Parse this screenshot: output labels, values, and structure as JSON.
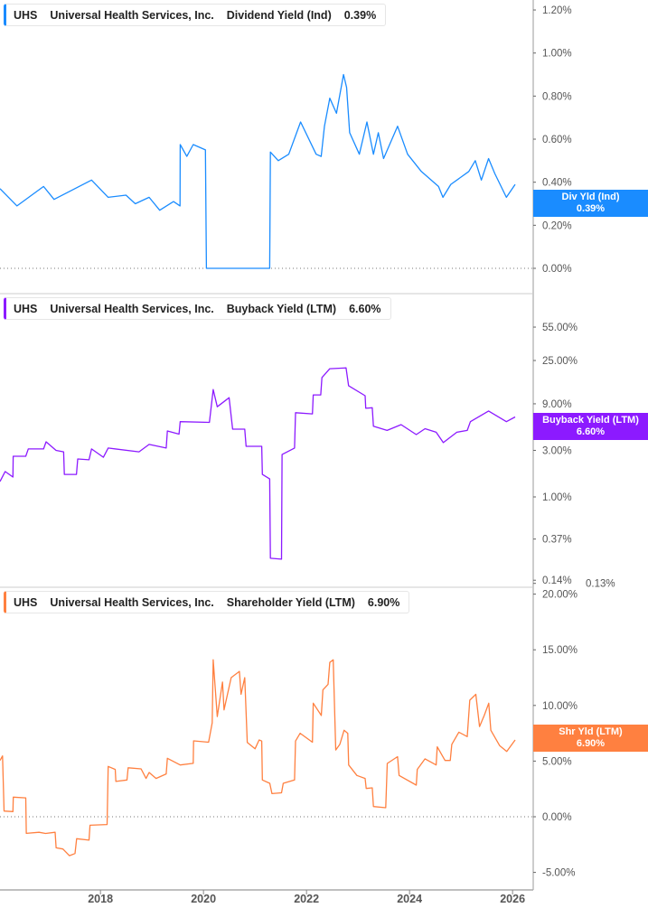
{
  "ticker": "UHS",
  "company": "Universal Health Services, Inc.",
  "chart_data": [
    {
      "type": "line",
      "legend": {
        "ticker": "UHS",
        "company": "Universal Health Services, Inc.",
        "metric": "Dividend Yield (Ind)",
        "value": "0.39%"
      },
      "badge": {
        "label": "Div Yld (Ind)",
        "value": "0.39%"
      },
      "color": "#1a8cff",
      "yscale": "linear",
      "ylim": [
        0,
        1.2
      ],
      "yticks": [
        {
          "v": 1.2,
          "label": "1.20%"
        },
        {
          "v": 1.0,
          "label": "1.00%"
        },
        {
          "v": 0.8,
          "label": "0.80%"
        },
        {
          "v": 0.6,
          "label": "0.60%"
        },
        {
          "v": 0.4,
          "label": "0.40%"
        },
        {
          "v": 0.2,
          "label": "0.20%"
        },
        {
          "v": 0.0,
          "label": "0.00%"
        }
      ],
      "zero_line": true,
      "points": [
        [
          "2016-01-19",
          0.37
        ],
        [
          "2016-05-19",
          0.29
        ],
        [
          "2016-11-24",
          0.38
        ],
        [
          "2017-02-06",
          0.32
        ],
        [
          "2017-10-30",
          0.41
        ],
        [
          "2018-02-25",
          0.33
        ],
        [
          "2018-07-01",
          0.34
        ],
        [
          "2018-09-05",
          0.3
        ],
        [
          "2018-12-12",
          0.33
        ],
        [
          "2019-02-25",
          0.27
        ],
        [
          "2019-06-03",
          0.31
        ],
        [
          "2019-07-19",
          0.29
        ],
        [
          "2019-07-20",
          0.575
        ],
        [
          "2019-09-05",
          0.52
        ],
        [
          "2019-10-20",
          0.575
        ],
        [
          "2020-01-15",
          0.55
        ],
        [
          "2020-01-22",
          0.0
        ],
        [
          "2021-04-15",
          0.0
        ],
        [
          "2021-04-20",
          0.54
        ],
        [
          "2021-06-15",
          0.5
        ],
        [
          "2021-08-28",
          0.53
        ],
        [
          "2021-11-20",
          0.68
        ],
        [
          "2022-03-10",
          0.53
        ],
        [
          "2022-04-15",
          0.52
        ],
        [
          "2022-05-08",
          0.66
        ],
        [
          "2022-06-15",
          0.79
        ],
        [
          "2022-08-01",
          0.72
        ],
        [
          "2022-09-20",
          0.9
        ],
        [
          "2022-10-12",
          0.84
        ],
        [
          "2022-11-03",
          0.63
        ],
        [
          "2023-01-10",
          0.53
        ],
        [
          "2023-03-05",
          0.68
        ],
        [
          "2023-04-20",
          0.53
        ],
        [
          "2023-05-25",
          0.63
        ],
        [
          "2023-07-01",
          0.51
        ],
        [
          "2023-10-08",
          0.66
        ],
        [
          "2023-12-18",
          0.53
        ],
        [
          "2024-03-25",
          0.45
        ],
        [
          "2024-07-25",
          0.38
        ],
        [
          "2024-08-25",
          0.33
        ],
        [
          "2024-10-20",
          0.39
        ],
        [
          "2025-02-25",
          0.45
        ],
        [
          "2025-04-12",
          0.5
        ],
        [
          "2025-05-25",
          0.41
        ],
        [
          "2025-07-15",
          0.51
        ],
        [
          "2025-08-28",
          0.44
        ],
        [
          "2025-11-18",
          0.33
        ],
        [
          "2026-01-19",
          0.39
        ]
      ]
    },
    {
      "type": "line",
      "legend": {
        "ticker": "UHS",
        "company": "Universal Health Services, Inc.",
        "metric": "Buyback Yield (LTM)",
        "value": "6.60%"
      },
      "badge": {
        "label": "Buyback Yield (LTM)",
        "value": "6.60%"
      },
      "color": "#8c1aff",
      "yscale": "log",
      "yticks": [
        {
          "v": 55,
          "label": "55.00%"
        },
        {
          "v": 25,
          "label": "25.00%"
        },
        {
          "v": 9,
          "label": "9.00%"
        },
        {
          "v": 3,
          "label": "3.00%"
        },
        {
          "v": 1,
          "label": "1.00%"
        },
        {
          "v": 0.37,
          "label": "0.37%"
        },
        {
          "v": 0.14,
          "label": "0.14%"
        },
        {
          "v": 0.13,
          "label": "0.13%"
        }
      ],
      "zero_line": false,
      "points": [
        [
          "2016-01-19",
          1.44
        ],
        [
          "2016-02-25",
          1.82
        ],
        [
          "2016-04-20",
          1.6
        ],
        [
          "2016-04-22",
          2.61
        ],
        [
          "2016-07-20",
          2.61
        ],
        [
          "2016-08-07",
          3.1
        ],
        [
          "2016-11-24",
          3.1
        ],
        [
          "2016-12-12",
          3.67
        ],
        [
          "2017-02-20",
          3.0
        ],
        [
          "2017-04-15",
          2.9
        ],
        [
          "2017-04-20",
          1.7
        ],
        [
          "2017-07-15",
          1.7
        ],
        [
          "2017-07-24",
          2.45
        ],
        [
          "2017-10-12",
          2.4
        ],
        [
          "2017-10-30",
          3.1
        ],
        [
          "2018-01-22",
          2.55
        ],
        [
          "2018-02-25",
          3.17
        ],
        [
          "2018-10-01",
          2.9
        ],
        [
          "2018-12-12",
          3.45
        ],
        [
          "2019-04-12",
          3.17
        ],
        [
          "2019-04-20",
          4.74
        ],
        [
          "2019-07-12",
          4.4
        ],
        [
          "2019-07-20",
          5.9
        ],
        [
          "2020-02-12",
          5.8
        ],
        [
          "2020-03-10",
          12.6
        ],
        [
          "2020-04-08",
          8.4
        ],
        [
          "2020-07-01",
          10.4
        ],
        [
          "2020-07-26",
          4.95
        ],
        [
          "2020-10-20",
          4.95
        ],
        [
          "2020-10-30",
          3.3
        ],
        [
          "2021-02-18",
          3.3
        ],
        [
          "2021-02-22",
          1.7
        ],
        [
          "2021-04-15",
          1.53
        ],
        [
          "2021-04-20",
          0.235
        ],
        [
          "2021-07-08",
          0.23
        ],
        [
          "2021-07-12",
          2.72
        ],
        [
          "2021-10-08",
          3.17
        ],
        [
          "2021-10-15",
          7.3
        ],
        [
          "2022-02-12",
          7.1
        ],
        [
          "2022-02-18",
          11.1
        ],
        [
          "2022-04-12",
          11.1
        ],
        [
          "2022-04-20",
          16.7
        ],
        [
          "2022-06-15",
          20.6
        ],
        [
          "2022-10-08",
          21.0
        ],
        [
          "2022-10-26",
          13.8
        ],
        [
          "2023-02-20",
          10.9
        ],
        [
          "2023-02-25",
          8.1
        ],
        [
          "2023-04-12",
          8.2
        ],
        [
          "2023-04-20",
          5.3
        ],
        [
          "2023-07-26",
          4.8
        ],
        [
          "2023-11-02",
          5.5
        ],
        [
          "2024-02-18",
          4.35
        ],
        [
          "2024-04-20",
          5.0
        ],
        [
          "2024-07-08",
          4.6
        ],
        [
          "2024-08-28",
          3.6
        ],
        [
          "2024-12-02",
          4.6
        ],
        [
          "2025-02-14",
          4.8
        ],
        [
          "2025-03-08",
          5.9
        ],
        [
          "2025-07-15",
          7.6
        ],
        [
          "2025-11-18",
          5.9
        ],
        [
          "2026-01-19",
          6.6
        ]
      ]
    },
    {
      "type": "line",
      "legend": {
        "ticker": "UHS",
        "company": "Universal Health Services, Inc.",
        "metric": "Shareholder Yield (LTM)",
        "value": "6.90%"
      },
      "badge": {
        "label": "Shr Yld (LTM)",
        "value": "6.90%"
      },
      "color": "#ff8040",
      "yscale": "linear",
      "ylim": [
        -5,
        20
      ],
      "yticks": [
        {
          "v": 20,
          "label": "20.00%"
        },
        {
          "v": 15,
          "label": "15.00%"
        },
        {
          "v": 10,
          "label": "10.00%"
        },
        {
          "v": 5,
          "label": "5.00%"
        },
        {
          "v": 0,
          "label": "0.00%"
        },
        {
          "v": -5,
          "label": "-5.00%"
        }
      ],
      "zero_line": true,
      "points": [
        [
          "2016-01-19",
          5.06
        ],
        [
          "2016-02-06",
          5.46
        ],
        [
          "2016-02-17",
          0.51
        ],
        [
          "2016-04-20",
          0.46
        ],
        [
          "2016-04-23",
          1.76
        ],
        [
          "2016-07-20",
          1.7
        ],
        [
          "2016-07-24",
          -1.49
        ],
        [
          "2016-10-23",
          -1.4
        ],
        [
          "2016-12-08",
          -1.5
        ],
        [
          "2017-02-14",
          -1.4
        ],
        [
          "2017-02-21",
          -2.79
        ],
        [
          "2017-04-10",
          -2.9
        ],
        [
          "2017-05-26",
          -3.5
        ],
        [
          "2017-07-05",
          -3.3
        ],
        [
          "2017-07-16",
          -1.97
        ],
        [
          "2017-10-12",
          -2.1
        ],
        [
          "2017-10-19",
          -0.76
        ],
        [
          "2018-02-17",
          -0.7
        ],
        [
          "2018-02-25",
          4.52
        ],
        [
          "2018-04-16",
          4.25
        ],
        [
          "2018-04-20",
          3.17
        ],
        [
          "2018-07-08",
          3.3
        ],
        [
          "2018-07-16",
          4.4
        ],
        [
          "2018-10-16",
          4.3
        ],
        [
          "2018-11-20",
          3.44
        ],
        [
          "2018-12-12",
          3.98
        ],
        [
          "2019-01-30",
          3.44
        ],
        [
          "2019-04-12",
          3.85
        ],
        [
          "2019-04-20",
          5.25
        ],
        [
          "2019-07-20",
          4.65
        ],
        [
          "2019-10-20",
          4.8
        ],
        [
          "2019-10-23",
          6.82
        ],
        [
          "2020-02-06",
          6.7
        ],
        [
          "2020-03-03",
          8.44
        ],
        [
          "2020-03-10",
          14.1
        ],
        [
          "2020-04-08",
          9.0
        ],
        [
          "2020-05-15",
          12.1
        ],
        [
          "2020-05-26",
          9.6
        ],
        [
          "2020-07-16",
          12.5
        ],
        [
          "2020-09-12",
          13.06
        ],
        [
          "2020-09-24",
          11.0
        ],
        [
          "2020-10-20",
          12.5
        ],
        [
          "2020-11-07",
          6.68
        ],
        [
          "2021-01-01",
          6.1
        ],
        [
          "2021-01-30",
          6.9
        ],
        [
          "2021-02-18",
          6.8
        ],
        [
          "2021-02-22",
          3.3
        ],
        [
          "2021-04-16",
          3.0
        ],
        [
          "2021-05-01",
          2.08
        ],
        [
          "2021-07-08",
          2.15
        ],
        [
          "2021-07-20",
          3.0
        ],
        [
          "2021-10-08",
          3.3
        ],
        [
          "2021-10-15",
          6.8
        ],
        [
          "2021-11-17",
          7.5
        ],
        [
          "2022-02-12",
          6.7
        ],
        [
          "2022-02-18",
          10.2
        ],
        [
          "2022-04-16",
          9.1
        ],
        [
          "2022-04-27",
          11.4
        ],
        [
          "2022-06-03",
          11.9
        ],
        [
          "2022-06-15",
          13.86
        ],
        [
          "2022-07-09",
          14.1
        ],
        [
          "2022-07-27",
          6.0
        ],
        [
          "2022-08-25",
          6.5
        ],
        [
          "2022-09-24",
          7.77
        ],
        [
          "2022-10-20",
          7.5
        ],
        [
          "2022-10-27",
          4.65
        ],
        [
          "2022-12-24",
          3.71
        ],
        [
          "2023-02-20",
          3.44
        ],
        [
          "2023-02-28",
          2.54
        ],
        [
          "2023-04-12",
          2.6
        ],
        [
          "2023-04-20",
          0.92
        ],
        [
          "2023-07-16",
          0.81
        ],
        [
          "2023-07-27",
          4.79
        ],
        [
          "2023-10-08",
          5.4
        ],
        [
          "2023-10-19",
          3.71
        ],
        [
          "2024-02-18",
          2.84
        ],
        [
          "2024-02-25",
          4.25
        ],
        [
          "2024-04-20",
          5.2
        ],
        [
          "2024-07-08",
          4.65
        ],
        [
          "2024-07-16",
          6.28
        ],
        [
          "2024-09-09",
          5.06
        ],
        [
          "2024-10-16",
          5.06
        ],
        [
          "2024-10-27",
          6.5
        ],
        [
          "2024-12-16",
          7.6
        ],
        [
          "2025-02-14",
          7.2
        ],
        [
          "2025-03-04",
          10.47
        ],
        [
          "2025-04-16",
          11.0
        ],
        [
          "2025-05-12",
          8.1
        ],
        [
          "2025-06-14",
          9.1
        ],
        [
          "2025-07-16",
          10.2
        ],
        [
          "2025-07-31",
          7.77
        ],
        [
          "2025-10-01",
          6.4
        ],
        [
          "2025-11-21",
          5.87
        ],
        [
          "2026-01-19",
          6.9
        ]
      ]
    }
  ],
  "xaxis": {
    "ticks": [
      {
        "date": "2018-01-01",
        "label": "2018"
      },
      {
        "date": "2020-01-01",
        "label": "2020"
      },
      {
        "date": "2022-01-01",
        "label": "2022"
      },
      {
        "date": "2024-01-01",
        "label": "2024"
      },
      {
        "date": "2026-01-01",
        "label": "2026"
      }
    ]
  }
}
